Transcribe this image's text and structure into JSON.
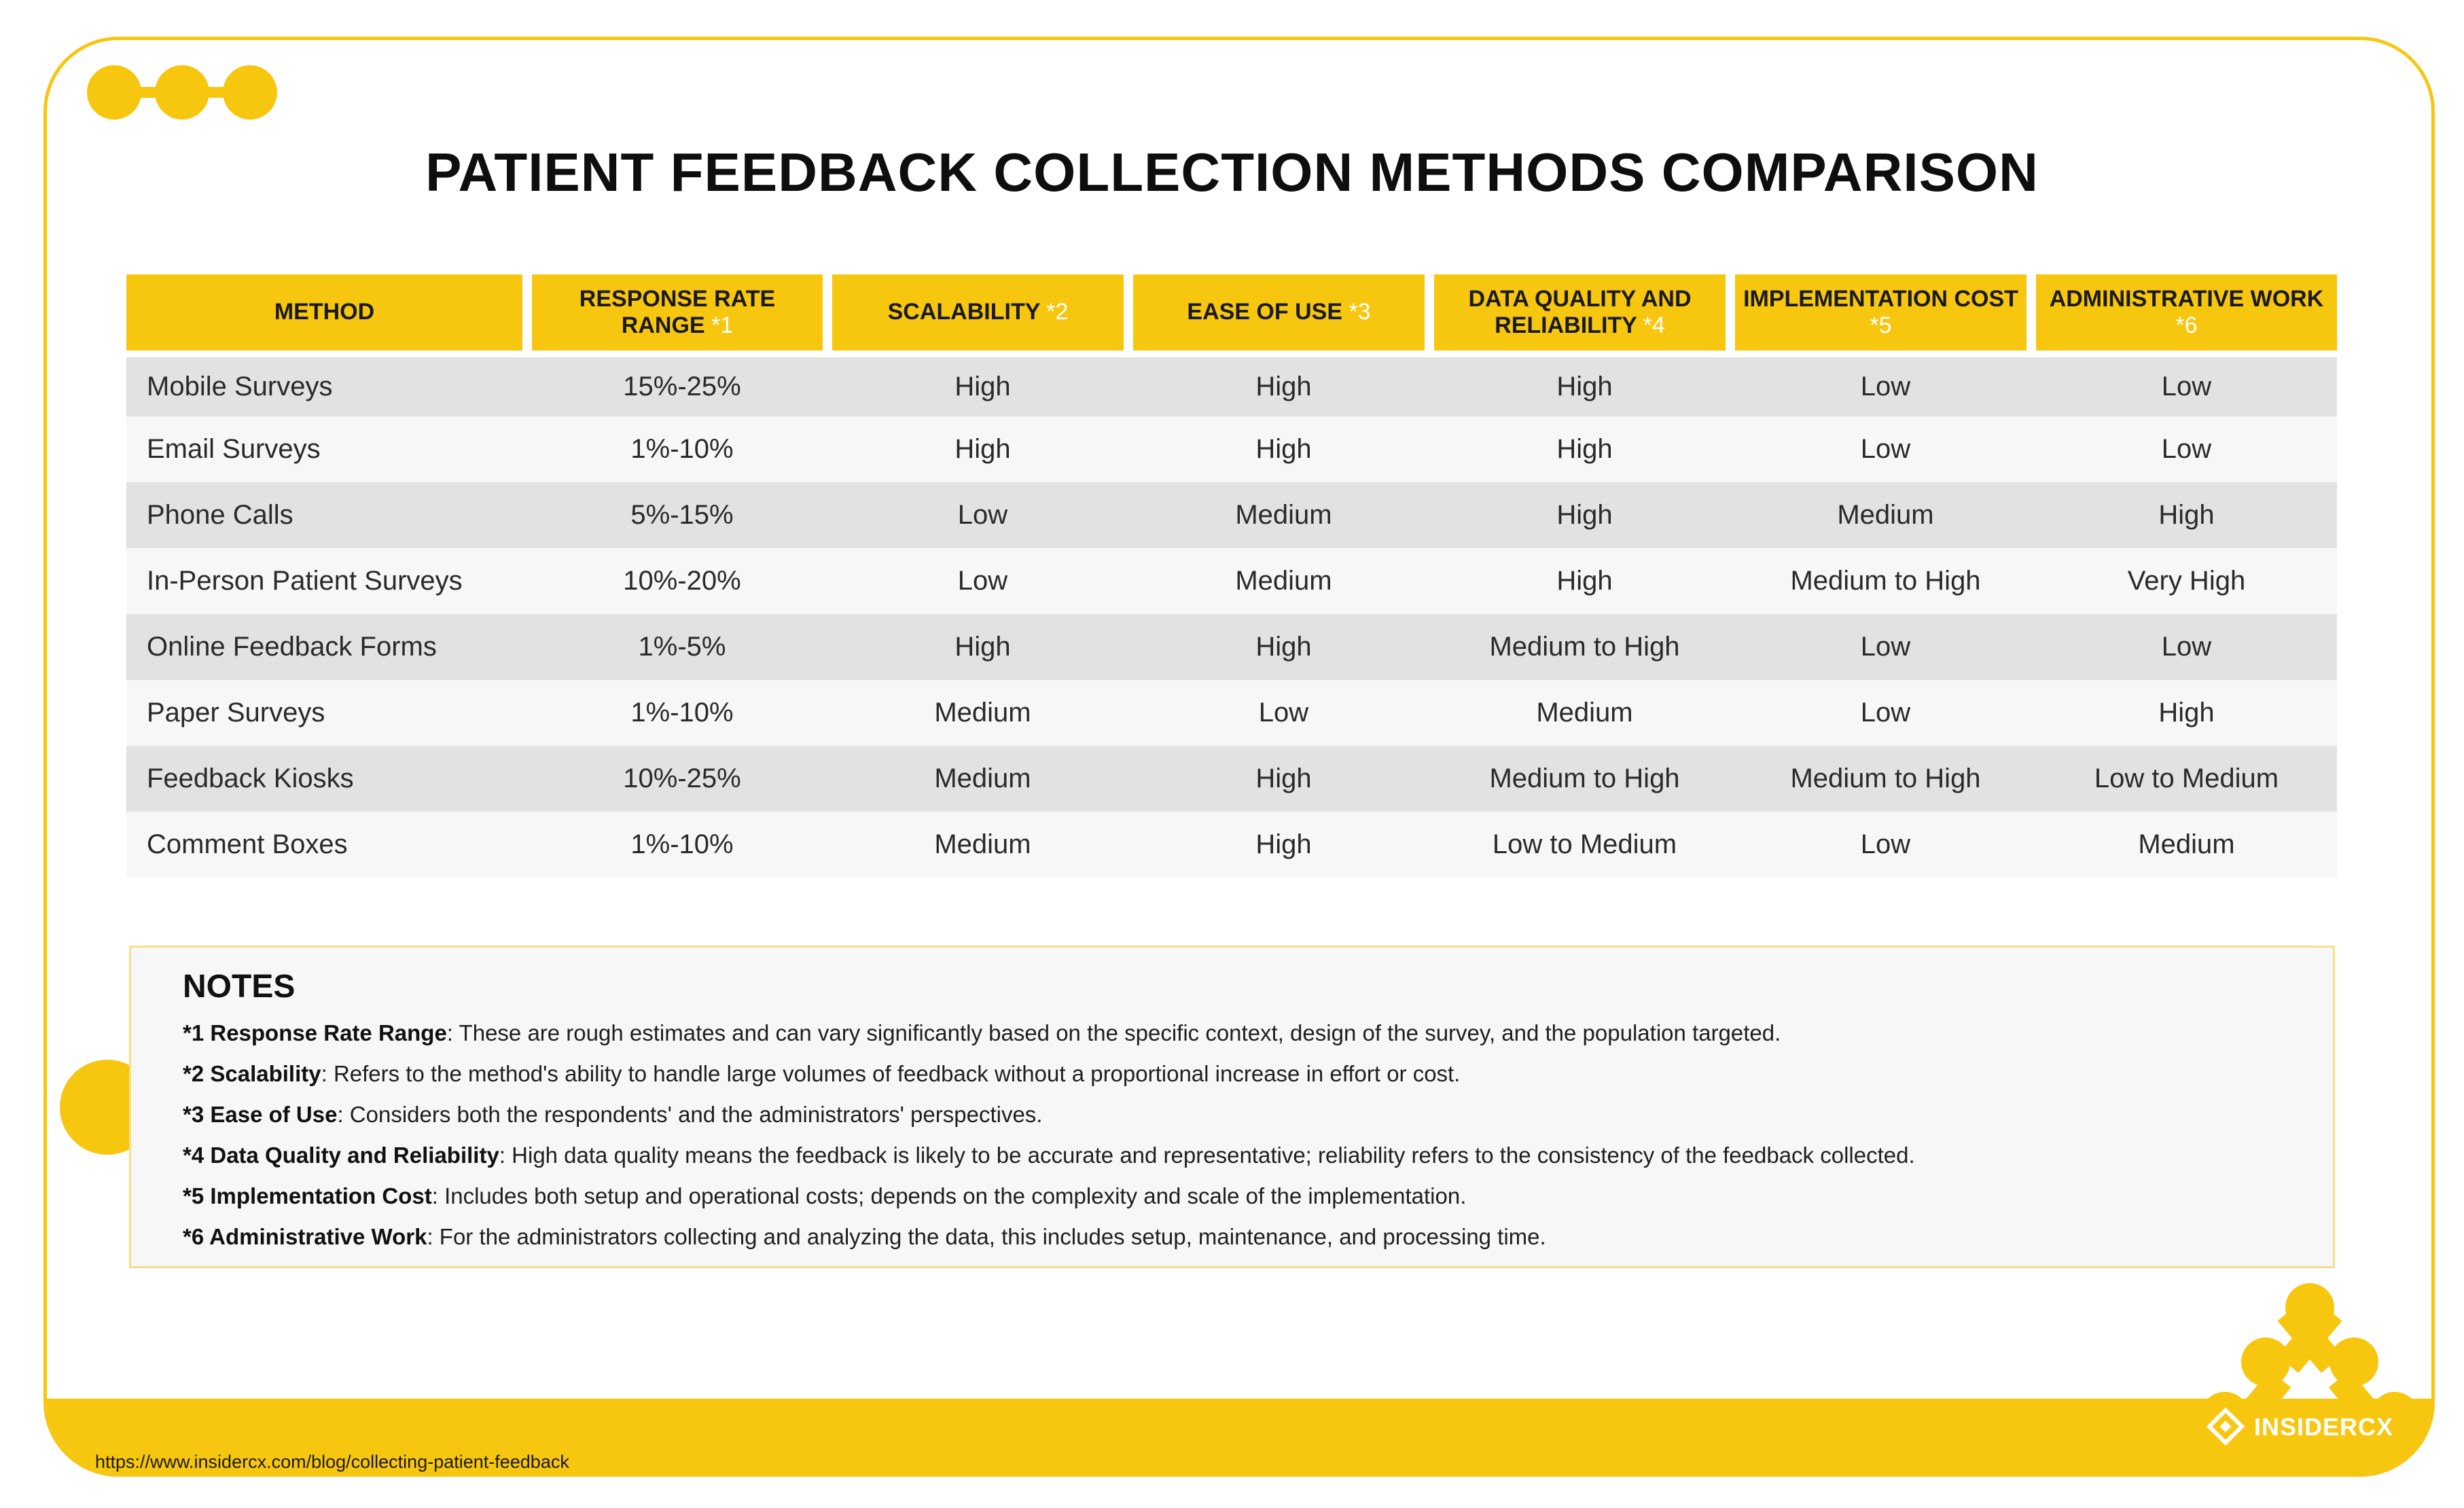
{
  "title": "PATIENT FEEDBACK COLLECTION METHODS COMPARISON",
  "table": {
    "headers": [
      {
        "label": "METHOD",
        "note": ""
      },
      {
        "label": "RESPONSE RATE RANGE",
        "note": "*1"
      },
      {
        "label": "SCALABILITY",
        "note": "*2"
      },
      {
        "label": "EASE OF USE",
        "note": "*3"
      },
      {
        "label": "DATA QUALITY AND RELIABILITY",
        "note": "*4"
      },
      {
        "label": "IMPLEMENTATION COST",
        "note": "*5"
      },
      {
        "label": "ADMINISTRATIVE WORK",
        "note": "*6"
      }
    ],
    "rows": [
      [
        "Mobile Surveys",
        "15%-25%",
        "High",
        "High",
        "High",
        "Low",
        "Low"
      ],
      [
        "Email Surveys",
        "1%-10%",
        "High",
        "High",
        "High",
        "Low",
        "Low"
      ],
      [
        "Phone Calls",
        "5%-15%",
        "Low",
        "Medium",
        "High",
        "Medium",
        "High"
      ],
      [
        "In-Person Patient Surveys",
        "10%-20%",
        "Low",
        "Medium",
        "High",
        "Medium to High",
        "Very High"
      ],
      [
        "Online Feedback Forms",
        "1%-5%",
        "High",
        "High",
        "Medium to High",
        "Low",
        "Low"
      ],
      [
        "Paper Surveys",
        "1%-10%",
        "Medium",
        "Low",
        "Medium",
        "Low",
        "High"
      ],
      [
        "Feedback Kiosks",
        "10%-25%",
        "Medium",
        "High",
        "Medium to High",
        "Medium to High",
        "Low to Medium"
      ],
      [
        "Comment Boxes",
        "1%-10%",
        "Medium",
        "High",
        "Low to Medium",
        "Low",
        "Medium"
      ]
    ]
  },
  "notes": {
    "title": "NOTES",
    "items": [
      {
        "term": "*1 Response Rate Range",
        "text": ": These are rough estimates and can vary significantly based on the specific context, design of the survey, and the population targeted."
      },
      {
        "term": "*2 Scalability",
        "text": ": Refers to the method's ability to handle large volumes of feedback without a proportional increase in effort or cost."
      },
      {
        "term": "*3 Ease of Use",
        "text": ": Considers both the respondents' and the administrators' perspectives."
      },
      {
        "term": "*4 Data Quality and Reliability",
        "text": ": High data quality means the feedback is likely to be accurate and representative; reliability refers to the consistency of the feedback collected."
      },
      {
        "term": "*5 Implementation Cost",
        "text": ": Includes both setup and operational costs; depends on the complexity and scale of the implementation."
      },
      {
        "term": "*6 Administrative Work",
        "text": ": For the administrators collecting and analyzing the data, this includes setup, maintenance, and processing time."
      }
    ]
  },
  "footer": {
    "url": "https://www.insidercx.com/blog/collecting-patient-feedback",
    "brand": "INSIDERCX"
  },
  "colors": {
    "accent": "#f7c60f",
    "row_dark": "#e2e2e3",
    "row_light": "#f7f7f7"
  }
}
